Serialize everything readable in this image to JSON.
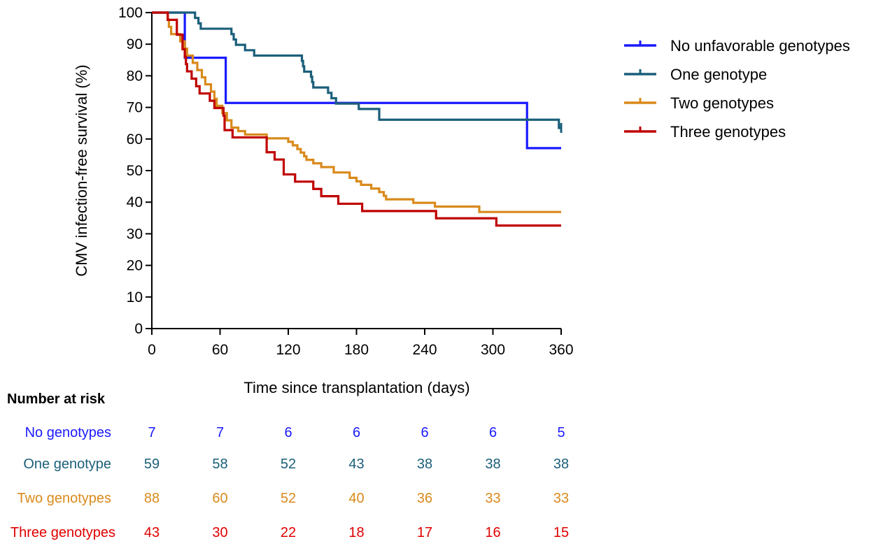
{
  "chart_data": {
    "type": "line",
    "subtype": "kaplan-meier-step",
    "title": "",
    "xlabel": "Time since transplantation (days)",
    "ylabel": "CMV infection-free survival (%)",
    "xlim": [
      0,
      360
    ],
    "ylim": [
      0,
      100
    ],
    "xticks": [
      0,
      60,
      120,
      180,
      240,
      300,
      360
    ],
    "yticks": [
      0,
      10,
      20,
      30,
      40,
      50,
      60,
      70,
      80,
      90,
      100
    ],
    "legend_position": "top-right",
    "series": [
      {
        "name": "No unfavorable genotypes",
        "color": "#1a1aff",
        "points": [
          [
            0,
            100
          ],
          [
            29,
            100
          ],
          [
            29,
            85.7
          ],
          [
            65,
            85.7
          ],
          [
            65,
            71.4
          ],
          [
            330,
            71.4
          ],
          [
            330,
            57.1
          ],
          [
            360,
            57.1
          ]
        ],
        "censor_x": []
      },
      {
        "name": "One genotype",
        "color": "#1b5f7a",
        "points": [
          [
            0,
            100
          ],
          [
            38,
            100
          ],
          [
            38,
            98.3
          ],
          [
            41,
            98.3
          ],
          [
            41,
            96.6
          ],
          [
            43,
            96.6
          ],
          [
            43,
            94.9
          ],
          [
            70,
            94.9
          ],
          [
            70,
            93.2
          ],
          [
            72,
            93.2
          ],
          [
            72,
            91.5
          ],
          [
            74,
            91.5
          ],
          [
            74,
            89.8
          ],
          [
            82,
            89.8
          ],
          [
            82,
            88.1
          ],
          [
            90,
            88.1
          ],
          [
            90,
            86.4
          ],
          [
            132,
            86.4
          ],
          [
            132,
            84.7
          ],
          [
            133,
            84.7
          ],
          [
            133,
            83.0
          ],
          [
            134,
            83.0
          ],
          [
            134,
            81.3
          ],
          [
            140,
            81.3
          ],
          [
            140,
            79.7
          ],
          [
            141,
            79.7
          ],
          [
            141,
            78.0
          ],
          [
            142,
            78.0
          ],
          [
            142,
            76.3
          ],
          [
            155,
            76.3
          ],
          [
            155,
            74.6
          ],
          [
            158,
            74.6
          ],
          [
            158,
            72.9
          ],
          [
            162,
            72.9
          ],
          [
            162,
            71.2
          ],
          [
            182,
            71.2
          ],
          [
            182,
            69.5
          ],
          [
            200,
            69.5
          ],
          [
            200,
            66.1
          ],
          [
            358,
            66.1
          ],
          [
            358,
            63.5
          ],
          [
            360,
            63.5
          ]
        ],
        "censor_x": [
          360
        ]
      },
      {
        "name": "Two genotypes",
        "color": "#d98a1c",
        "points": [
          [
            0,
            100
          ],
          [
            14,
            100
          ],
          [
            14,
            97.7
          ],
          [
            15,
            97.7
          ],
          [
            15,
            95.5
          ],
          [
            17,
            95.5
          ],
          [
            17,
            93.2
          ],
          [
            25,
            93.2
          ],
          [
            25,
            90.9
          ],
          [
            29,
            90.9
          ],
          [
            29,
            88.6
          ],
          [
            31,
            88.6
          ],
          [
            31,
            86.4
          ],
          [
            36,
            86.4
          ],
          [
            36,
            84.1
          ],
          [
            40,
            84.1
          ],
          [
            40,
            81.8
          ],
          [
            44,
            81.8
          ],
          [
            44,
            79.5
          ],
          [
            47,
            79.5
          ],
          [
            47,
            77.3
          ],
          [
            52,
            77.3
          ],
          [
            52,
            75.0
          ],
          [
            55,
            75.0
          ],
          [
            55,
            72.7
          ],
          [
            57,
            72.7
          ],
          [
            57,
            70.5
          ],
          [
            62,
            70.5
          ],
          [
            62,
            68.2
          ],
          [
            66,
            68.2
          ],
          [
            66,
            65.9
          ],
          [
            70,
            65.9
          ],
          [
            70,
            63.6
          ],
          [
            76,
            63.6
          ],
          [
            76,
            62.5
          ],
          [
            82,
            62.5
          ],
          [
            82,
            61.4
          ],
          [
            101,
            61.4
          ],
          [
            101,
            60.2
          ],
          [
            120,
            60.2
          ],
          [
            120,
            59.1
          ],
          [
            124,
            59.1
          ],
          [
            124,
            58.0
          ],
          [
            128,
            58.0
          ],
          [
            128,
            56.8
          ],
          [
            131,
            56.8
          ],
          [
            131,
            55.7
          ],
          [
            134,
            55.7
          ],
          [
            134,
            54.5
          ],
          [
            136,
            54.5
          ],
          [
            136,
            53.4
          ],
          [
            142,
            53.4
          ],
          [
            142,
            52.3
          ],
          [
            149,
            52.3
          ],
          [
            149,
            51.1
          ],
          [
            160,
            51.1
          ],
          [
            160,
            49.4
          ],
          [
            174,
            49.4
          ],
          [
            174,
            47.7
          ],
          [
            180,
            47.7
          ],
          [
            180,
            46.6
          ],
          [
            184,
            46.6
          ],
          [
            184,
            45.5
          ],
          [
            193,
            45.5
          ],
          [
            193,
            44.3
          ],
          [
            200,
            44.3
          ],
          [
            200,
            43.2
          ],
          [
            204,
            43.2
          ],
          [
            204,
            42.0
          ],
          [
            206,
            42.0
          ],
          [
            206,
            40.9
          ],
          [
            230,
            40.9
          ],
          [
            230,
            39.8
          ],
          [
            249,
            39.8
          ],
          [
            249,
            38.6
          ],
          [
            288,
            38.6
          ],
          [
            288,
            36.9
          ],
          [
            360,
            36.9
          ]
        ],
        "censor_x": []
      },
      {
        "name": "Three genotypes",
        "color": "#c00000",
        "points": [
          [
            0,
            100
          ],
          [
            14,
            100
          ],
          [
            14,
            97.7
          ],
          [
            22,
            97.7
          ],
          [
            22,
            93.0
          ],
          [
            27,
            93.0
          ],
          [
            27,
            88.4
          ],
          [
            29,
            88.4
          ],
          [
            29,
            86.0
          ],
          [
            30,
            86.0
          ],
          [
            30,
            83.7
          ],
          [
            31,
            83.7
          ],
          [
            31,
            81.4
          ],
          [
            35,
            81.4
          ],
          [
            35,
            79.1
          ],
          [
            39,
            79.1
          ],
          [
            39,
            76.7
          ],
          [
            42,
            76.7
          ],
          [
            42,
            74.4
          ],
          [
            51,
            74.4
          ],
          [
            51,
            72.1
          ],
          [
            55,
            72.1
          ],
          [
            55,
            69.8
          ],
          [
            63,
            69.8
          ],
          [
            63,
            67.4
          ],
          [
            64,
            67.4
          ],
          [
            64,
            62.8
          ],
          [
            71,
            62.8
          ],
          [
            71,
            60.5
          ],
          [
            101,
            60.5
          ],
          [
            101,
            55.8
          ],
          [
            108,
            55.8
          ],
          [
            108,
            53.5
          ],
          [
            116,
            53.5
          ],
          [
            116,
            48.8
          ],
          [
            126,
            48.8
          ],
          [
            126,
            46.5
          ],
          [
            142,
            46.5
          ],
          [
            142,
            44.2
          ],
          [
            149,
            44.2
          ],
          [
            149,
            41.9
          ],
          [
            164,
            41.9
          ],
          [
            164,
            39.5
          ],
          [
            185,
            39.5
          ],
          [
            185,
            37.2
          ],
          [
            250,
            37.2
          ],
          [
            250,
            34.9
          ],
          [
            303,
            34.9
          ],
          [
            303,
            32.6
          ],
          [
            360,
            32.6
          ]
        ],
        "censor_x": []
      }
    ],
    "risk_table": {
      "title": "Number at risk",
      "times": [
        0,
        60,
        120,
        180,
        240,
        300,
        360
      ],
      "rows": [
        {
          "label": "No genotypes",
          "color": "#1a1aff",
          "values": [
            "7",
            "7",
            "6",
            "6",
            "6",
            "6",
            "5"
          ]
        },
        {
          "label": "One genotype",
          "color": "#1b5f7a",
          "values": [
            "59",
            "58",
            "52",
            "43",
            "38",
            "38",
            "38"
          ]
        },
        {
          "label": "Two genotypes",
          "color": "#d98a1c",
          "values": [
            "88",
            "60",
            "52",
            "40",
            "36",
            "33",
            "33"
          ]
        },
        {
          "label": "Three genotypes",
          "color": "#e00000",
          "values": [
            "43",
            "30",
            "22",
            "18",
            "17",
            "16",
            "15"
          ]
        }
      ]
    }
  }
}
